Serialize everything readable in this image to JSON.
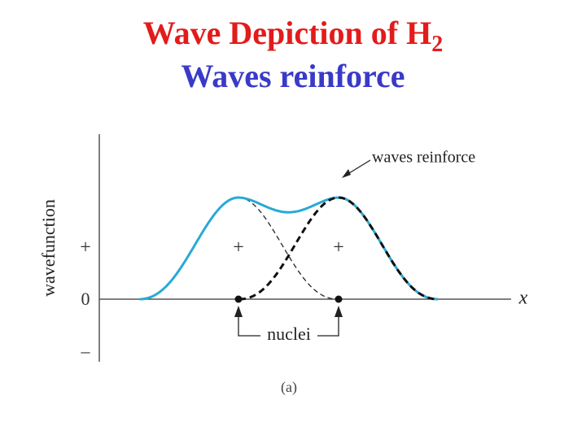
{
  "title": {
    "line1": "Wave Depiction of H",
    "subscript": "2",
    "line2": "Waves reinforce"
  },
  "diagram": {
    "y_axis_label": "wavefunction",
    "y_labels": [
      "+",
      "0",
      "–"
    ],
    "x_axis_label": "x",
    "annotation": "waves reinforce",
    "lobe_signs": [
      "+",
      "+"
    ],
    "nuclei_label": "nuclei",
    "caption": "(a)"
  }
}
